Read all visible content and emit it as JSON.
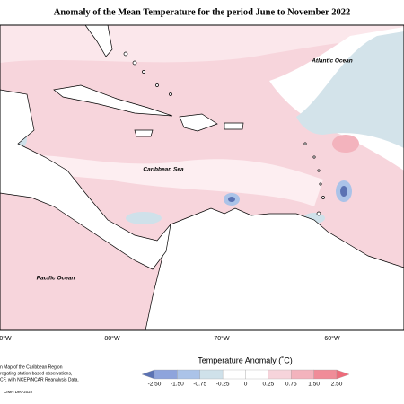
{
  "title": "Anomaly of the Mean Temperature for the period June to November 2022",
  "map": {
    "labels": [
      "Atlantic Ocean",
      "Caribbean Sea",
      "Pacific Ocean"
    ],
    "longitudes": [
      "0°W",
      "80°W",
      "70°W",
      "60°W"
    ]
  },
  "legend": {
    "title": "Temperature Anomaly (˚C)",
    "labels": [
      "-2.50",
      "-1.50",
      "-0.75",
      "-0.25",
      "0",
      "0.25",
      "0.75",
      "1.50",
      "2.50"
    ],
    "colors": [
      "#5b72b3",
      "#8ea4dc",
      "#abc3e8",
      "#cfe1ea",
      "#ffffff",
      "#ffffff",
      "#f6d4db",
      "#f3b3bd",
      "#f08c98",
      "#ee6b7a"
    ]
  },
  "caption": [
    "n Map of the Caribbean Region",
    "regating station based observations,",
    "CF, with NCEP/NCAR Reanalysis Data."
  ],
  "credit": "CIMH Dec-2022"
}
